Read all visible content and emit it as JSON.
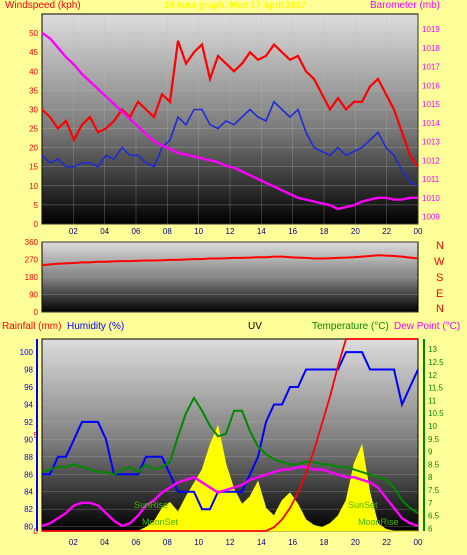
{
  "header": {
    "left_label": "Windspeed (kph)",
    "right_label": "Barometer (mb)",
    "title": "24 hour graph: Mon 17 April 2017"
  },
  "compass": {
    "letters": [
      "N",
      "W",
      "S",
      "E",
      "N"
    ]
  },
  "bottom_header": {
    "rain_label": "Rainfall (mm)",
    "humidity_label": "Humidity (%)",
    "uv_label": "UV",
    "temp_label": "Temperature (°C)",
    "dew_label": "Dew Point (°C)"
  },
  "astro": {
    "sunrise": "SunRise",
    "sunset": "SunSet",
    "moonset": "MoonSet",
    "moonrise": "MoonRise"
  },
  "colors": {
    "background": "#ffff99",
    "gust": "#ff0000",
    "wind": "#1e2ad8",
    "pressure": "#ff00ff",
    "direction": "#ff0000",
    "rain": "#ff0000",
    "humidity": "#0000ff",
    "uv": "#ffff00",
    "temperature": "#008800",
    "dewpoint": "#ff00ff",
    "astro": "#44bb00"
  },
  "chart_data": [
    {
      "type": "line",
      "name": "wind-barometer",
      "x_ticks": [
        "02",
        "04",
        "06",
        "08",
        "10",
        "12",
        "14",
        "16",
        "18",
        "20",
        "22",
        "00"
      ],
      "xlim": [
        0,
        24
      ],
      "ylim_left": [
        0,
        55
      ],
      "yticks_left": [
        0,
        5,
        10,
        15,
        20,
        25,
        30,
        35,
        40,
        45,
        50
      ],
      "ylim_right": [
        1008.6,
        1019.8
      ],
      "yticks_right": [
        1009,
        1010,
        1011,
        1012,
        1013,
        1014,
        1015,
        1016,
        1017,
        1018,
        1019
      ],
      "gust_kph": [
        30,
        28,
        25,
        27,
        22,
        26,
        28,
        24,
        25,
        27,
        30,
        28,
        32,
        30,
        28,
        34,
        32,
        48,
        42,
        45,
        47,
        38,
        44,
        42,
        40,
        42,
        45,
        43,
        44,
        47,
        45,
        43,
        44,
        40,
        38,
        34,
        30,
        33,
        30,
        32,
        32,
        36,
        38,
        34,
        30,
        24,
        18,
        15
      ],
      "wind_kph": [
        18,
        16,
        17,
        15,
        15,
        16,
        16,
        15,
        18,
        17,
        20,
        18,
        18,
        16,
        15,
        20,
        22,
        28,
        26,
        30,
        30,
        26,
        25,
        27,
        26,
        28,
        30,
        28,
        27,
        32,
        30,
        28,
        30,
        24,
        20,
        19,
        18,
        20,
        18,
        19,
        20,
        22,
        24,
        20,
        18,
        14,
        11,
        10
      ],
      "pressure_mb": [
        1018.8,
        1018.5,
        1018.0,
        1017.5,
        1017.1,
        1016.6,
        1016.2,
        1015.8,
        1015.4,
        1015.0,
        1014.6,
        1014.2,
        1013.8,
        1013.4,
        1013.0,
        1012.8,
        1012.6,
        1012.4,
        1012.3,
        1012.2,
        1012.1,
        1012.0,
        1011.9,
        1011.7,
        1011.6,
        1011.4,
        1011.2,
        1011.0,
        1010.8,
        1010.6,
        1010.4,
        1010.2,
        1010.0,
        1009.9,
        1009.8,
        1009.7,
        1009.6,
        1009.4,
        1009.5,
        1009.6,
        1009.8,
        1009.9,
        1010.0,
        1010.0,
        1009.9,
        1009.9,
        1010.0,
        1010.0
      ]
    },
    {
      "type": "line",
      "name": "wind-direction",
      "x_ticks": [
        "02",
        "04",
        "06",
        "08",
        "10",
        "12",
        "14",
        "16",
        "18",
        "20",
        "22",
        "00"
      ],
      "xlim": [
        0,
        24
      ],
      "ylim": [
        0,
        360
      ],
      "yticks": [
        0,
        90,
        180,
        270,
        360
      ],
      "direction_deg": [
        240,
        245,
        248,
        250,
        252,
        255,
        255,
        258,
        258,
        260,
        262,
        262,
        264,
        265,
        265,
        266,
        268,
        268,
        270,
        272,
        272,
        275,
        275,
        276,
        278,
        278,
        280,
        282,
        282,
        285,
        285,
        282,
        280,
        278,
        275,
        275,
        276,
        278,
        280,
        282,
        285,
        288,
        292,
        290,
        288,
        285,
        280,
        275
      ]
    },
    {
      "type": "line",
      "name": "rain-humidity-uv-temperature",
      "x_ticks": [
        "02",
        "04",
        "06",
        "08",
        "10",
        "12",
        "14",
        "16",
        "18",
        "20",
        "22",
        "00"
      ],
      "xlim": [
        0,
        24
      ],
      "ylim_rain": [
        0,
        10
      ],
      "yticks_rain": [
        0,
        5
      ],
      "ylim_humidity": [
        79.5,
        101.5
      ],
      "yticks_humidity": [
        80,
        82,
        84,
        86,
        88,
        90,
        92,
        94,
        96,
        98,
        100
      ],
      "ylim_temp": [
        5.9,
        13.4
      ],
      "yticks_temp": [
        6,
        6.5,
        7,
        7.5,
        8,
        8.5,
        9,
        9.5,
        10,
        10.5,
        11,
        11.5,
        12,
        12.5,
        13
      ],
      "rain_mm": [
        0,
        0,
        0,
        0,
        0,
        0,
        0,
        0,
        0,
        0,
        0,
        0,
        0,
        0,
        0,
        0,
        0,
        0,
        0,
        0,
        0,
        0,
        0,
        0,
        0,
        0,
        0,
        0,
        0,
        0.2,
        0.6,
        1.2,
        2.0,
        3.0,
        4.2,
        5.6,
        7.0,
        8.6,
        10,
        10,
        10,
        10,
        10,
        10,
        10,
        10,
        10,
        10
      ],
      "humidity_pct": [
        86,
        86,
        88,
        88,
        90,
        92,
        92,
        92,
        90,
        86,
        86,
        86,
        86,
        88,
        88,
        88,
        86,
        84,
        84,
        84,
        82,
        82,
        84,
        84,
        84,
        84,
        86,
        88,
        92,
        94,
        94,
        96,
        96,
        98,
        98,
        98,
        98,
        98,
        100,
        100,
        100,
        98,
        98,
        98,
        98,
        94,
        96,
        98
      ],
      "uv_index": [
        0,
        0,
        0,
        0,
        0,
        0,
        0,
        0,
        0,
        0,
        0,
        0,
        0,
        0.2,
        0.5,
        1.2,
        1.5,
        1.0,
        1.8,
        2.5,
        3.2,
        4.5,
        5.5,
        3.5,
        2.2,
        1.4,
        1.8,
        2.6,
        1.2,
        0.8,
        1.6,
        2.0,
        1.4,
        0.6,
        0.3,
        0.2,
        0.4,
        0.8,
        1.6,
        3.5,
        4.5,
        2.0,
        0.4,
        0.1,
        0,
        0,
        0,
        0
      ],
      "temperature_c": [
        8.2,
        8.3,
        8.4,
        8.4,
        8.5,
        8.4,
        8.3,
        8.2,
        8.2,
        8.1,
        8.3,
        8.4,
        8.2,
        8.5,
        8.3,
        8.4,
        8.6,
        9.6,
        10.5,
        11.1,
        10.6,
        10.0,
        9.6,
        9.7,
        10.6,
        10.6,
        9.8,
        9.2,
        8.9,
        8.7,
        8.6,
        8.5,
        8.5,
        8.6,
        8.6,
        8.5,
        8.5,
        8.4,
        8.4,
        8.3,
        8.2,
        8.1,
        8.0,
        7.9,
        7.6,
        7.1,
        6.8,
        6.6
      ],
      "dewpoint_c": [
        6.1,
        6.2,
        6.4,
        6.6,
        6.9,
        7.0,
        7.0,
        6.9,
        6.6,
        6.3,
        6.1,
        6.2,
        6.5,
        6.9,
        7.1,
        7.4,
        7.6,
        7.8,
        7.9,
        8.0,
        7.8,
        7.6,
        7.4,
        7.5,
        7.6,
        7.7,
        7.9,
        8.0,
        8.1,
        8.2,
        8.3,
        8.3,
        8.4,
        8.4,
        8.3,
        8.3,
        8.2,
        8.1,
        8.0,
        8.0,
        7.9,
        7.8,
        7.6,
        7.2,
        6.8,
        6.4,
        6.2,
        6.1
      ]
    }
  ]
}
